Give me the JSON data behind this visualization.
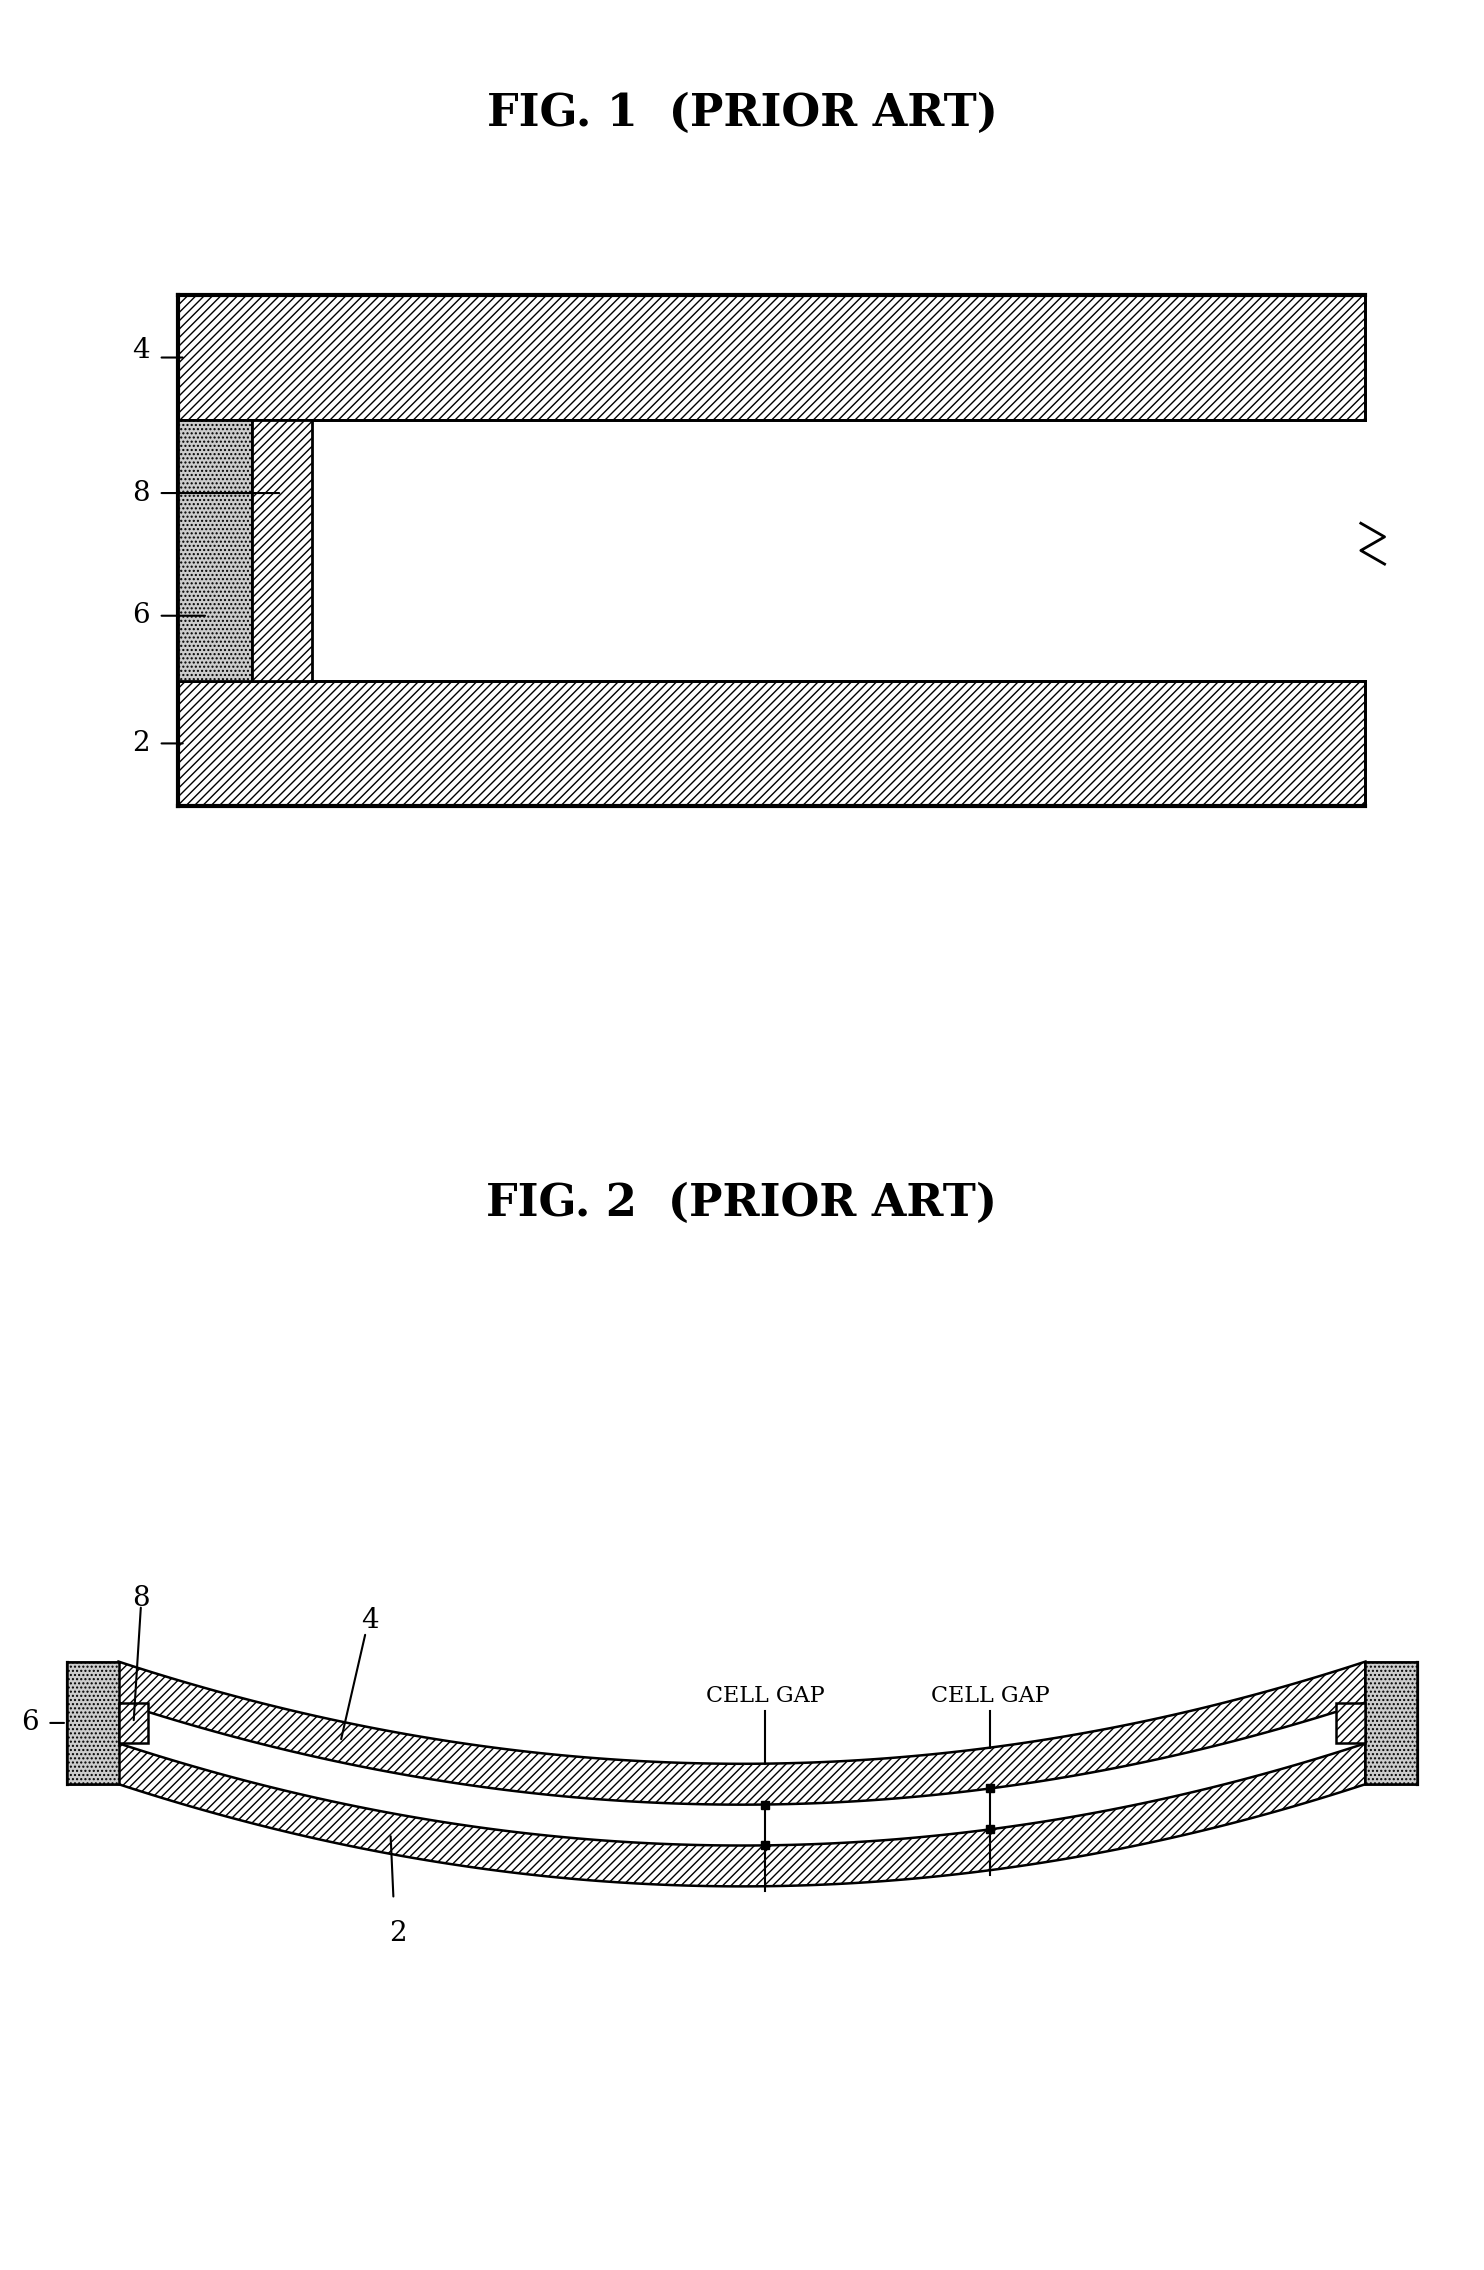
{
  "fig1_title": "FIG. 1  (PRIOR ART)",
  "fig2_title": "FIG. 2  (PRIOR ART)",
  "bg_color": "#ffffff",
  "label_4": "4",
  "label_8": "8",
  "label_6": "6",
  "label_2": "2",
  "cell_gap_label": "CELL GAP",
  "font_size_title": 32,
  "font_size_label": 20
}
